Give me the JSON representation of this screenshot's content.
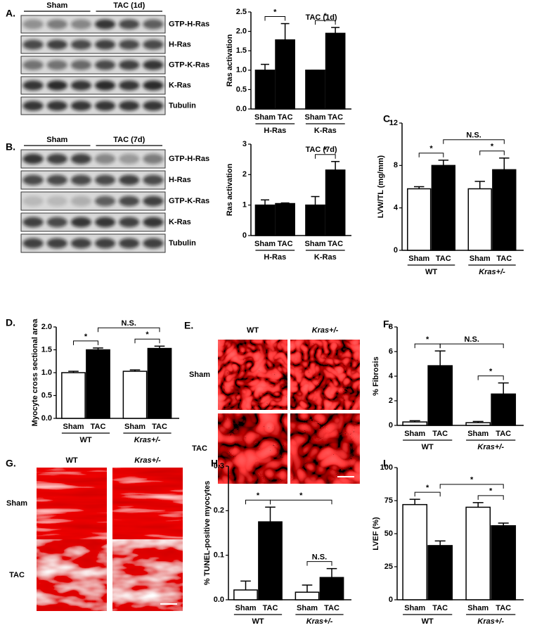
{
  "blots": [
    {
      "panel": "A.",
      "groups": [
        "Sham",
        "TAC (1d)"
      ],
      "rows": [
        "GTP-H-Ras",
        "H-Ras",
        "GTP-K-Ras",
        "K-Ras",
        "Tubulin"
      ]
    },
    {
      "panel": "B.",
      "groups": [
        "Sham",
        "TAC (7d)"
      ],
      "rows": [
        "GTP-H-Ras",
        "H-Ras",
        "GTP-K-Ras",
        "K-Ras",
        "Tubulin"
      ]
    }
  ],
  "images": [
    {
      "panel": "E.",
      "columns": [
        "WT",
        "Kras+/-"
      ],
      "rows": [
        "Sham",
        "TAC"
      ]
    },
    {
      "panel": "G.",
      "columns": [
        "WT",
        "Kras+/-"
      ],
      "rows": [
        "Sham",
        "TAC"
      ]
    }
  ],
  "chart_data": [
    {
      "type": "bar",
      "ylabel": "Ras activation",
      "annotation": "TAC (1d)",
      "ylim": [
        0,
        2.5
      ],
      "yticks": [
        {
          "value": 0,
          "label": "0.0"
        },
        0.5,
        {
          "value": 1,
          "label": "1.0"
        },
        1.5,
        {
          "value": 2,
          "label": "2.0"
        },
        2.5
      ],
      "categories": [
        "Sham",
        "TAC",
        "Sham",
        "TAC"
      ],
      "groups": [
        "H-Ras",
        "K-Ras"
      ],
      "values": [
        1.0,
        1.78,
        1.0,
        1.95
      ],
      "errors": [
        0.15,
        0.42,
        0,
        0.15
      ],
      "colors": [
        "#000000",
        "#000000",
        "#000000",
        "#000000"
      ],
      "brackets": [
        {
          "label": "*",
          "from": 0,
          "to": 1
        },
        {
          "label": "*",
          "from": 2,
          "to": 3
        }
      ]
    },
    {
      "type": "bar",
      "ylabel": "Ras activation",
      "annotation": "TAC (7d)",
      "ylim": [
        0,
        3
      ],
      "yticks": [
        0,
        1,
        2,
        3
      ],
      "categories": [
        "Sham",
        "TAC",
        "Sham",
        "TAC"
      ],
      "groups": [
        "H-Ras",
        "K-Ras"
      ],
      "values": [
        1.0,
        1.05,
        1.0,
        2.15
      ],
      "errors": [
        0.17,
        0.02,
        0.28,
        0.28
      ],
      "colors": [
        "#000000",
        "#000000",
        "#000000",
        "#000000"
      ],
      "brackets": [
        {
          "label": "*",
          "from": 2,
          "to": 3
        }
      ]
    },
    {
      "type": "bar",
      "panel": "C.",
      "ylabel": "LVW/TL (mg/mm)",
      "ylim": [
        0,
        12
      ],
      "yticks": [
        0,
        4,
        8,
        12
      ],
      "categories": [
        "Sham",
        "TAC",
        "Sham",
        "TAC"
      ],
      "groups": [
        "WT",
        "Kras+/-"
      ],
      "values": [
        5.8,
        8.0,
        5.8,
        7.6
      ],
      "errors": [
        0.2,
        0.5,
        0.7,
        1.1
      ],
      "colors": [
        "#ffffff",
        "#000000",
        "#ffffff",
        "#000000"
      ],
      "brackets": [
        {
          "label": "*",
          "from": 0,
          "to": 1
        },
        {
          "label": "*",
          "from": 2,
          "to": 3
        },
        {
          "label": "N.S.",
          "from": 1,
          "to": 3
        }
      ]
    },
    {
      "type": "bar",
      "panel": "D.",
      "ylabel": "Myocyte cross sectional area",
      "ylim": [
        0,
        2
      ],
      "yticks": [
        {
          "value": 0,
          "label": "0.0"
        },
        0.5,
        {
          "value": 1,
          "label": "1.0"
        },
        1.5,
        {
          "value": 2,
          "label": "2.0"
        }
      ],
      "categories": [
        "Sham",
        "TAC",
        "Sham",
        "TAC"
      ],
      "groups": [
        "WT",
        "Kras+/-"
      ],
      "values": [
        1.0,
        1.5,
        1.03,
        1.53
      ],
      "errors": [
        0.03,
        0.04,
        0.03,
        0.05
      ],
      "colors": [
        "#ffffff",
        "#000000",
        "#ffffff",
        "#000000"
      ],
      "brackets": [
        {
          "label": "*",
          "from": 0,
          "to": 1
        },
        {
          "label": "*",
          "from": 2,
          "to": 3
        },
        {
          "label": "N.S.",
          "from": 1,
          "to": 3
        }
      ]
    },
    {
      "type": "bar",
      "panel": "F.",
      "ylabel": "% Fibrosis",
      "ylim": [
        0,
        8
      ],
      "yticks": [
        0,
        2,
        4,
        6,
        8
      ],
      "categories": [
        "Sham",
        "TAC",
        "Sham",
        "TAC"
      ],
      "groups": [
        "WT",
        "Kras+/-"
      ],
      "values": [
        0.28,
        4.85,
        0.22,
        2.55
      ],
      "errors": [
        0.1,
        1.2,
        0.1,
        0.9
      ],
      "colors": [
        "#ffffff",
        "#000000",
        "#ffffff",
        "#000000"
      ],
      "brackets": [
        {
          "label": "*",
          "from": 0,
          "to": 1
        },
        {
          "label": "*",
          "from": 2,
          "to": 3
        },
        {
          "label": "N.S.",
          "from": 1,
          "to": 3
        }
      ]
    },
    {
      "type": "bar",
      "panel": "H.",
      "ylabel": "% TUNEL-positive myocytes",
      "ylim": [
        0,
        0.3
      ],
      "yticks": [
        {
          "value": 0,
          "label": "0.0"
        },
        0.1,
        0.2,
        0.3
      ],
      "categories": [
        "Sham",
        "TAC",
        "Sham",
        "TAC"
      ],
      "groups": [
        "WT",
        "Kras+/-"
      ],
      "values": [
        0.022,
        0.175,
        0.017,
        0.05
      ],
      "errors": [
        0.02,
        0.033,
        0.016,
        0.02
      ],
      "colors": [
        "#ffffff",
        "#000000",
        "#ffffff",
        "#000000"
      ],
      "brackets": [
        {
          "label": "*",
          "from": 0,
          "to": 1
        },
        {
          "label": "N.S.",
          "from": 2,
          "to": 3
        },
        {
          "label": "*",
          "from": 1,
          "to": 3
        }
      ]
    },
    {
      "type": "bar",
      "panel": "I.",
      "ylabel": "LVEF (%)",
      "ylim": [
        0,
        100
      ],
      "yticks": [
        0,
        25,
        50,
        75,
        100
      ],
      "categories": [
        "Sham",
        "TAC",
        "Sham",
        "TAC"
      ],
      "groups": [
        "WT",
        "Kras+/-"
      ],
      "values": [
        72,
        41,
        70,
        56
      ],
      "errors": [
        4,
        3.5,
        3.5,
        2
      ],
      "colors": [
        "#ffffff",
        "#000000",
        "#ffffff",
        "#000000"
      ],
      "brackets": [
        {
          "label": "*",
          "from": 0,
          "to": 1
        },
        {
          "label": "*",
          "from": 2,
          "to": 3
        },
        {
          "label": "*",
          "from": 1,
          "to": 3
        }
      ]
    }
  ]
}
